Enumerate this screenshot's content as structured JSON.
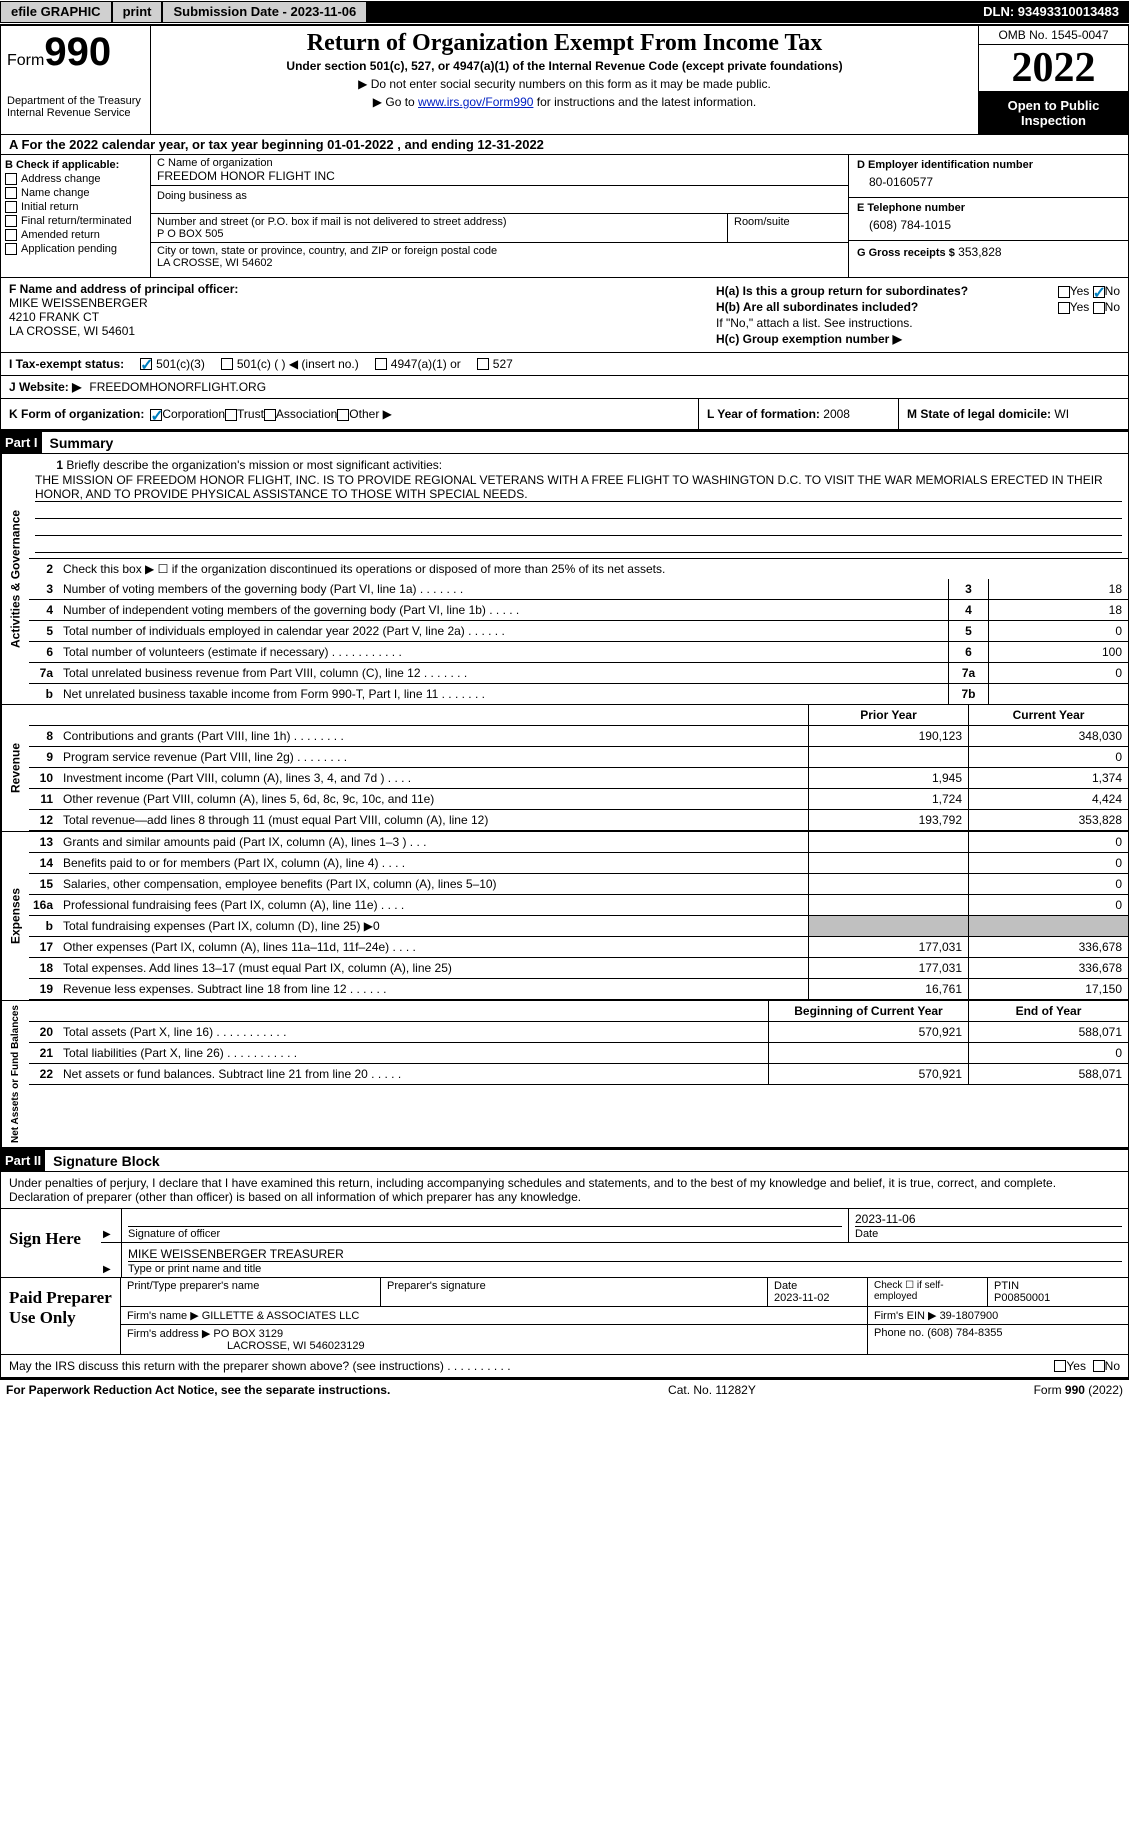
{
  "topbar": {
    "efile": "efile GRAPHIC",
    "print": "print",
    "submission": "Submission Date - 2023-11-06",
    "dln": "DLN: 93493310013483"
  },
  "header": {
    "form_label": "Form",
    "form_num": "990",
    "dept": "Department of the Treasury",
    "irs": "Internal Revenue Service",
    "title": "Return of Organization Exempt From Income Tax",
    "subtitle": "Under section 501(c), 527, or 4947(a)(1) of the Internal Revenue Code (except private foundations)",
    "note1": "▶ Do not enter social security numbers on this form as it may be made public.",
    "note2_pre": "▶ Go to ",
    "note2_link": "www.irs.gov/Form990",
    "note2_post": " for instructions and the latest information.",
    "omb": "OMB No. 1545-0047",
    "year": "2022",
    "open": "Open to Public Inspection"
  },
  "row_a": "A For the 2022 calendar year, or tax year beginning 01-01-2022    , and ending 12-31-2022",
  "section_b": {
    "header": "B Check if applicable:",
    "checks": [
      "Address change",
      "Name change",
      "Initial return",
      "Final return/terminated",
      "Amended return",
      "Application pending"
    ],
    "c_lbl": "C Name of organization",
    "c_val": "FREEDOM HONOR FLIGHT INC",
    "dba_lbl": "Doing business as",
    "street_lbl": "Number and street (or P.O. box if mail is not delivered to street address)",
    "street_val": "P O BOX 505",
    "room_lbl": "Room/suite",
    "city_lbl": "City or town, state or province, country, and ZIP or foreign postal code",
    "city_val": "LA CROSSE, WI  54602",
    "d_lbl": "D Employer identification number",
    "d_val": "80-0160577",
    "e_lbl": "E Telephone number",
    "e_val": "(608) 784-1015",
    "g_lbl": "G Gross receipts $",
    "g_val": "353,828"
  },
  "section_f": {
    "f_lbl": "F Name and address of principal officer:",
    "f_name": "MIKE WEISSENBERGER",
    "f_addr1": "4210 FRANK CT",
    "f_addr2": "LA CROSSE, WI  54601",
    "ha_lbl": "H(a)  Is this a group return for subordinates?",
    "ha_no": "No",
    "hb_lbl": "H(b)  Are all subordinates included?",
    "hb_note": "If \"No,\" attach a list. See instructions.",
    "hc_lbl": "H(c)  Group exemption number ▶"
  },
  "row_i": {
    "lbl": "I  Tax-exempt status:",
    "o1": "501(c)(3)",
    "o2": "501(c) (  ) ◀ (insert no.)",
    "o3": "4947(a)(1) or",
    "o4": "527"
  },
  "row_j": {
    "lbl": "J  Website: ▶",
    "val": "FREEDOMHONORFLIGHT.ORG"
  },
  "row_k": {
    "k_lbl": "K Form of organization:",
    "k_o1": "Corporation",
    "k_o2": "Trust",
    "k_o3": "Association",
    "k_o4": "Other ▶",
    "l_lbl": "L Year of formation:",
    "l_val": "2008",
    "m_lbl": "M State of legal domicile:",
    "m_val": "WI"
  },
  "part1": {
    "hdr": "Part I",
    "title": "Summary",
    "side1": "Activities & Governance",
    "side2": "Revenue",
    "side3": "Expenses",
    "side4": "Net Assets or Fund Balances",
    "q1_lbl": "Briefly describe the organization's mission or most significant activities:",
    "q1_mission": "THE MISSION OF FREEDOM HONOR FLIGHT, INC. IS TO PROVIDE REGIONAL VETERANS WITH A FREE FLIGHT TO WASHINGTON D.C. TO VISIT THE WAR MEMORIALS ERECTED IN THEIR HONOR, AND TO PROVIDE PHYSICAL ASSISTANCE TO THOSE WITH SPECIAL NEEDS.",
    "q2": "Check this box ▶ ☐  if the organization discontinued its operations or disposed of more than 25% of its net assets.",
    "rows_single": [
      {
        "n": "3",
        "t": "Number of voting members of the governing body (Part VI, line 1a)   .    .    .    .    .    .    .",
        "bn": "3",
        "v": "18"
      },
      {
        "n": "4",
        "t": "Number of independent voting members of the governing body (Part VI, line 1b)   .    .    .    .    .",
        "bn": "4",
        "v": "18"
      },
      {
        "n": "5",
        "t": "Total number of individuals employed in calendar year 2022 (Part V, line 2a)   .    .    .    .    .    .",
        "bn": "5",
        "v": "0"
      },
      {
        "n": "6",
        "t": "Total number of volunteers (estimate if necessary)    .    .    .    .    .    .    .    .    .    .    .",
        "bn": "6",
        "v": "100"
      },
      {
        "n": "7a",
        "t": "Total unrelated business revenue from Part VIII, column (C), line 12   .    .    .    .    .    .    .",
        "bn": "7a",
        "v": "0"
      },
      {
        "n": "b",
        "t": "Net unrelated business taxable income from Form 990-T, Part I, line 11   .    .    .    .    .    .    .",
        "bn": "7b",
        "v": ""
      }
    ],
    "col_hdr_py": "Prior Year",
    "col_hdr_cy": "Current Year",
    "rows_rev": [
      {
        "n": "8",
        "t": "Contributions and grants (Part VIII, line 1h)   .    .    .    .    .    .    .    .",
        "py": "190,123",
        "cy": "348,030"
      },
      {
        "n": "9",
        "t": "Program service revenue (Part VIII, line 2g)   .    .    .    .    .    .    .    .",
        "py": "",
        "cy": "0"
      },
      {
        "n": "10",
        "t": "Investment income (Part VIII, column (A), lines 3, 4, and 7d )   .    .    .    .",
        "py": "1,945",
        "cy": "1,374"
      },
      {
        "n": "11",
        "t": "Other revenue (Part VIII, column (A), lines 5, 6d, 8c, 9c, 10c, and 11e)",
        "py": "1,724",
        "cy": "4,424"
      },
      {
        "n": "12",
        "t": "Total revenue—add lines 8 through 11 (must equal Part VIII, column (A), line 12)",
        "py": "193,792",
        "cy": "353,828"
      }
    ],
    "rows_exp": [
      {
        "n": "13",
        "t": "Grants and similar amounts paid (Part IX, column (A), lines 1–3 )   .    .    .",
        "py": "",
        "cy": "0"
      },
      {
        "n": "14",
        "t": "Benefits paid to or for members (Part IX, column (A), line 4)   .    .    .    .",
        "py": "",
        "cy": "0"
      },
      {
        "n": "15",
        "t": "Salaries, other compensation, employee benefits (Part IX, column (A), lines 5–10)",
        "py": "",
        "cy": "0"
      },
      {
        "n": "16a",
        "t": "Professional fundraising fees (Part IX, column (A), line 11e)    .    .    .    .",
        "py": "",
        "cy": "0"
      },
      {
        "n": "b",
        "t": "Total fundraising expenses (Part IX, column (D), line 25) ▶0",
        "py": "grey",
        "cy": "grey"
      },
      {
        "n": "17",
        "t": "Other expenses (Part IX, column (A), lines 11a–11d, 11f–24e)   .    .    .    .",
        "py": "177,031",
        "cy": "336,678"
      },
      {
        "n": "18",
        "t": "Total expenses. Add lines 13–17 (must equal Part IX, column (A), line 25)",
        "py": "177,031",
        "cy": "336,678"
      },
      {
        "n": "19",
        "t": "Revenue less expenses. Subtract line 18 from line 12   .    .    .    .    .    .",
        "py": "16,761",
        "cy": "17,150"
      }
    ],
    "col_hdr_by": "Beginning of Current Year",
    "col_hdr_ey": "End of Year",
    "rows_net": [
      {
        "n": "20",
        "t": "Total assets (Part X, line 16)   .    .    .    .    .    .    .    .    .    .    .",
        "py": "570,921",
        "cy": "588,071"
      },
      {
        "n": "21",
        "t": "Total liabilities (Part X, line 26)   .    .    .    .    .    .    .    .    .    .    .",
        "py": "",
        "cy": "0"
      },
      {
        "n": "22",
        "t": "Net assets or fund balances. Subtract line 21 from line 20    .    .    .    .    .",
        "py": "570,921",
        "cy": "588,071"
      }
    ]
  },
  "part2": {
    "hdr": "Part II",
    "title": "Signature Block",
    "decl": "Under penalties of perjury, I declare that I have examined this return, including accompanying schedules and statements, and to the best of my knowledge and belief, it is true, correct, and complete. Declaration of preparer (other than officer) is based on all information of which preparer has any knowledge."
  },
  "sign": {
    "lbl": "Sign Here",
    "sig_lbl": "Signature of officer",
    "date_val": "2023-11-06",
    "date_lbl": "Date",
    "name_val": "MIKE WEISSENBERGER  TREASURER",
    "name_lbl": "Type or print name and title"
  },
  "preparer": {
    "lbl": "Paid Preparer Use Only",
    "r1c1": "Print/Type preparer's name",
    "r1c2": "Preparer's signature",
    "r1c3_lbl": "Date",
    "r1c3_val": "2023-11-02",
    "r1c4": "Check ☐ if self-employed",
    "r1c5_lbl": "PTIN",
    "r1c5_val": "P00850001",
    "r2_lbl": "Firm's name    ▶",
    "r2_val": "GILLETTE & ASSOCIATES LLC",
    "r2_ein_lbl": "Firm's EIN ▶",
    "r2_ein_val": "39-1807900",
    "r3_lbl": "Firm's address ▶",
    "r3_val1": "PO BOX 3129",
    "r3_val2": "LACROSSE, WI  546023129",
    "r3_ph_lbl": "Phone no.",
    "r3_ph_val": "(608) 784-8355"
  },
  "bottom": {
    "q": "May the IRS discuss this return with the preparer shown above? (see instructions)   .    .    .    .    .    .    .    .    .    .",
    "yes": "Yes",
    "no": "No"
  },
  "footer": {
    "left": "For Paperwork Reduction Act Notice, see the separate instructions.",
    "mid": "Cat. No. 11282Y",
    "right": "Form 990 (2022)"
  }
}
